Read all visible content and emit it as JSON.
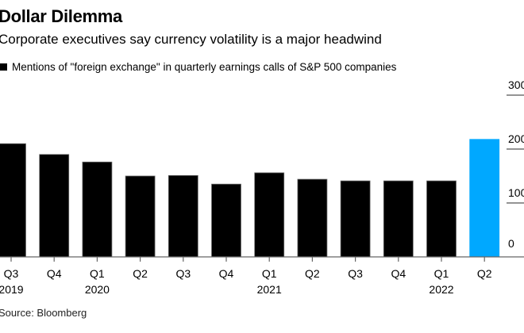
{
  "chart_data": {
    "type": "bar",
    "title": "Dollar Dilemma",
    "subtitle": "Corporate executives say currency volatility is a major headwind",
    "legend": [
      {
        "name": "Mentions of \"foreign exchange\" in quarterly earnings calls of S&P 500 companies",
        "color": "#000000"
      }
    ],
    "legend_position": "top-left",
    "categories": [
      "Q3 2019",
      "Q4 2019",
      "Q1 2020",
      "Q2 2020",
      "Q3 2020",
      "Q4 2020",
      "Q1 2021",
      "Q2 2021",
      "Q3 2021",
      "Q4 2021",
      "Q1 2022",
      "Q2 2022"
    ],
    "x_tick_labels": [
      {
        "quarter": "Q3",
        "year": "2019"
      },
      {
        "quarter": "Q4",
        "year": ""
      },
      {
        "quarter": "Q1",
        "year": "2020"
      },
      {
        "quarter": "Q2",
        "year": ""
      },
      {
        "quarter": "Q3",
        "year": ""
      },
      {
        "quarter": "Q4",
        "year": ""
      },
      {
        "quarter": "Q1",
        "year": "2021"
      },
      {
        "quarter": "Q2",
        "year": ""
      },
      {
        "quarter": "Q3",
        "year": ""
      },
      {
        "quarter": "Q4",
        "year": ""
      },
      {
        "quarter": "Q1",
        "year": "2022"
      },
      {
        "quarter": "Q2",
        "year": ""
      }
    ],
    "values": [
      210,
      190,
      176,
      150,
      151,
      135,
      156,
      144,
      141,
      141,
      141,
      218
    ],
    "bar_colors": [
      "#000000",
      "#000000",
      "#000000",
      "#000000",
      "#000000",
      "#000000",
      "#000000",
      "#000000",
      "#000000",
      "#000000",
      "#000000",
      "#00a8ff"
    ],
    "highlight_color": "#00a8ff",
    "ylim": [
      0,
      300
    ],
    "y_ticks": [
      0,
      100,
      200,
      300
    ],
    "y_tick_labels": [
      "0",
      "100",
      "200",
      "300"
    ],
    "y_axis_side": "right",
    "grid": false,
    "xlabel": "",
    "ylabel": "",
    "source": "Source: Bloomberg"
  }
}
